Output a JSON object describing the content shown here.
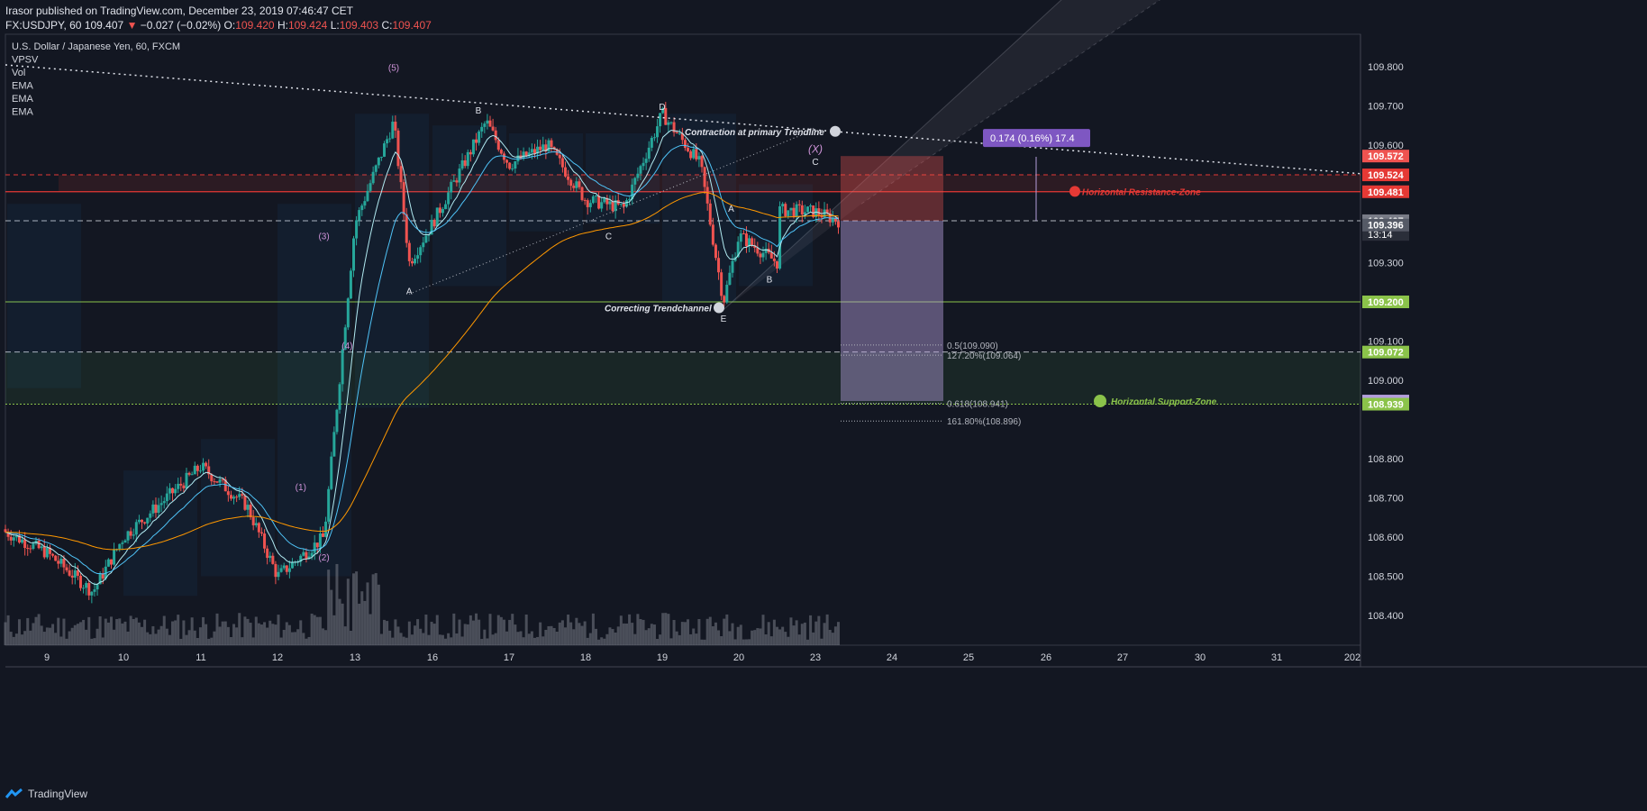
{
  "header": {
    "publish_line": "Irasor published on TradingView.com, December 23, 2019 07:46:47 CET",
    "symbol": "FX:USDJPY, 60",
    "last": "109.407",
    "change": "−0.027 (−0.02%)",
    "o_label": "O:",
    "o_val": "109.420",
    "h_label": "H:",
    "h_val": "109.424",
    "l_label": "L:",
    "l_val": "109.403",
    "c_label": "C:",
    "c_val": "109.407"
  },
  "legend": [
    "U.S. Dollar / Japanese Yen, 60, FXCM",
    "VPSV",
    "Vol",
    "EMA",
    "EMA",
    "EMA"
  ],
  "footer": {
    "brand": "TradingView"
  },
  "colors": {
    "up": "#26a69a",
    "down": "#ef5350",
    "background": "#131722",
    "resistance": "#e53935",
    "support": "#8bc34a",
    "label_purple": "#7e57c2"
  },
  "chart_data": {
    "type": "candlestick",
    "symbol": "USDJPY",
    "interval": "60",
    "ylim": [
      108.3,
      109.9
    ],
    "yticks": [
      "109.800",
      "109.700",
      "109.600",
      "109.300",
      "109.100",
      "109.000",
      "108.800",
      "108.700",
      "108.600",
      "108.500",
      "108.400"
    ],
    "xticks": [
      "9",
      "10",
      "11",
      "12",
      "13",
      "16",
      "17",
      "18",
      "19",
      "20",
      "23",
      "24",
      "25",
      "26",
      "27",
      "30",
      "31",
      "202"
    ],
    "price_path_keypoints": [
      {
        "day": "8",
        "price": 108.62
      },
      {
        "day": "9",
        "price": 108.56
      },
      {
        "day": "9.6",
        "price": 108.46
      },
      {
        "day": "10",
        "price": 108.6
      },
      {
        "day": "11",
        "price": 108.78
      },
      {
        "day": "11.6",
        "price": 108.68
      },
      {
        "day": "12",
        "price": 108.5
      },
      {
        "day": "12.6",
        "price": 108.6
      },
      {
        "day": "13",
        "price": 109.4
      },
      {
        "day": "13.5",
        "price": 109.66
      },
      {
        "day": "13.7",
        "price": 109.3
      },
      {
        "day": "16",
        "price": 109.4
      },
      {
        "day": "16.7",
        "price": 109.66
      },
      {
        "day": "17",
        "price": 109.55
      },
      {
        "day": "17.5",
        "price": 109.6
      },
      {
        "day": "18",
        "price": 109.46
      },
      {
        "day": "18.5",
        "price": 109.44
      },
      {
        "day": "19",
        "price": 109.68
      },
      {
        "day": "19.5",
        "price": 109.55
      },
      {
        "day": "19.8",
        "price": 109.2
      },
      {
        "day": "20",
        "price": 109.37
      },
      {
        "day": "20.5",
        "price": 109.3
      },
      {
        "day": "22.8",
        "price": 109.52
      },
      {
        "day": "23",
        "price": 109.43
      },
      {
        "day": "23.3",
        "price": 109.407
      }
    ],
    "price_labels": [
      {
        "text": "109.572",
        "price": 109.572,
        "color": "#ef5350"
      },
      {
        "text": "109.524",
        "price": 109.524,
        "color": "#e53935"
      },
      {
        "text": "109.481",
        "price": 109.481,
        "color": "#e53935"
      },
      {
        "text": "109.407",
        "price": 109.407,
        "color": "#787b86"
      },
      {
        "text": "13:14",
        "price": 109.372,
        "color": "#2a2e39"
      },
      {
        "text": "109.396",
        "price": 109.396,
        "color": "#555a66"
      },
      {
        "text": "109.200",
        "price": 109.2,
        "color": "#8bc34a"
      },
      {
        "text": "109.072",
        "price": 109.072,
        "color": "#8bc34a"
      },
      {
        "text": "108.947",
        "price": 108.947,
        "color": "#b39ddb"
      },
      {
        "text": "108.939",
        "price": 108.939,
        "color": "#8bc34a"
      }
    ],
    "wave_labels": [
      {
        "text": "(5)",
        "day": "13.5",
        "price": 109.79
      },
      {
        "text": "(3)",
        "day": "12.6",
        "price": 109.36
      },
      {
        "text": "(4)",
        "day": "12.9",
        "price": 109.08
      },
      {
        "text": "(1)",
        "day": "12.3",
        "price": 108.72
      },
      {
        "text": "(2)",
        "day": "12.6",
        "price": 108.54
      },
      {
        "text": "A",
        "day": "13.7",
        "price": 109.22
      },
      {
        "text": "B",
        "day": "16.6",
        "price": 109.68
      },
      {
        "text": "C",
        "day": "18.3",
        "price": 109.36
      },
      {
        "text": "D",
        "day": "19",
        "price": 109.69
      },
      {
        "text": "E",
        "day": "19.8",
        "price": 109.15
      },
      {
        "text": "A",
        "day": "19.9",
        "price": 109.43
      },
      {
        "text": "B",
        "day": "20.4",
        "price": 109.25
      },
      {
        "text": "C",
        "day": "23",
        "price": 109.55
      },
      {
        "text": "(X)",
        "day": "23",
        "price": 109.58
      }
    ],
    "annotations": [
      {
        "text": "Contraction at primary Trendline",
        "day": "19.3",
        "price": 109.635
      },
      {
        "text": "Correcting Trendchannel",
        "day": "18.3",
        "price": 109.185
      },
      {
        "text": "Horizontal Resistance-Zone",
        "day": "26.5",
        "price": 109.482
      },
      {
        "text": "Horizontal Support-Zone",
        "day": "27",
        "price": 108.947
      },
      {
        "text": "0.174 (0.16%) 17.4",
        "day": "25.5",
        "price": 109.618
      }
    ],
    "fib_levels": [
      {
        "text": "0.5(109.090)",
        "price": 109.09
      },
      {
        "text": "127.20%(109.064)",
        "price": 109.064
      },
      {
        "text": "0.618(108.941)",
        "price": 108.941
      },
      {
        "text": "161.80%(108.896)",
        "price": 108.896
      }
    ],
    "horizontal_levels": {
      "resistance_top": 109.524,
      "resistance_bottom": 109.481,
      "support_line": 109.2,
      "support_zone_top": 109.072,
      "support_zone_bottom": 108.939,
      "current": 109.407
    },
    "projection": {
      "entry": 109.407,
      "stop": 109.572,
      "target": 108.947
    }
  }
}
